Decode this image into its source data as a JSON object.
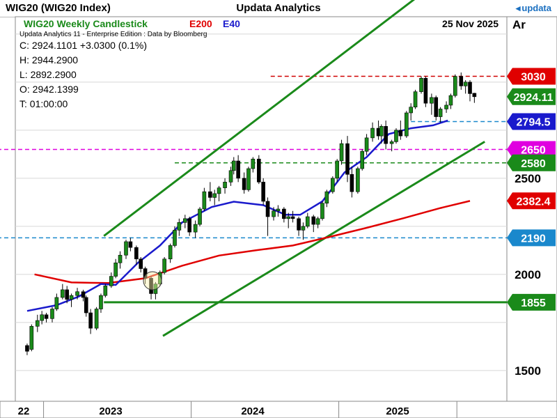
{
  "window": {
    "title_left": "WIG20 (WIG20 Index)",
    "title_center": "Updata Analytics",
    "logo": "updata"
  },
  "header": {
    "chart_title": "WIG20 Weekly Candlestick",
    "legend_e200": "E200",
    "legend_e40": "E40",
    "date": "25 Nov 2025",
    "axis_label": "Ar",
    "subheader": "Updata Analytics 11 - Enterprise Edition : Data by Bloomberg"
  },
  "ohlc": {
    "close": "C: 2924.1101  +3.0300 (0.1%)",
    "high": "H: 2944.2900",
    "low": "L: 2892.2900",
    "open": "O: 2942.1399",
    "time": "T: 01:00:00"
  },
  "colors": {
    "candle_up": "#1a8a1a",
    "candle_down": "#000000",
    "ema200": "#e00000",
    "ema40": "#1a1acc",
    "channel": "#1a8a1a",
    "level_blue": "#1a88cc",
    "level_magenta": "#e000e0",
    "level_red": "#d00000"
  },
  "chart_data": {
    "type": "line",
    "x_axis": {
      "labels": [
        "22",
        "2023",
        "2024",
        "2025"
      ]
    },
    "y_axis": {
      "ticks": [
        1500,
        2000,
        2500
      ],
      "range": [
        1340,
        3340
      ]
    },
    "price_labels": [
      {
        "text": "3030",
        "value": 3030,
        "color": "#e00000"
      },
      {
        "text": "2924.11",
        "value": 2924.11,
        "color": "#1a8a1a"
      },
      {
        "text": "2794.5",
        "value": 2794.5,
        "color": "#1a1acc"
      },
      {
        "text": "2650",
        "value": 2650,
        "color": "#e000e0"
      },
      {
        "text": "2580",
        "value": 2580,
        "color": "#1a8a1a"
      },
      {
        "text": "2382.4",
        "value": 2382.4,
        "color": "#e00000"
      },
      {
        "text": "2190",
        "value": 2190,
        "color": "#1a88cc"
      },
      {
        "text": "1855",
        "value": 1855,
        "color": "#1a8a1a"
      }
    ],
    "series": [
      {
        "name": "E200",
        "color": "#e00000",
        "points": [
          [
            2022.75,
            2000
          ],
          [
            2023.0,
            1958
          ],
          [
            2023.25,
            1955
          ],
          [
            2023.5,
            1980
          ],
          [
            2023.75,
            2045
          ],
          [
            2024.0,
            2098
          ],
          [
            2024.25,
            2125
          ],
          [
            2024.5,
            2150
          ],
          [
            2024.75,
            2195
          ],
          [
            2025.0,
            2242
          ],
          [
            2025.25,
            2292
          ],
          [
            2025.5,
            2345
          ],
          [
            2025.7,
            2382
          ]
        ]
      },
      {
        "name": "E40",
        "color": "#1a1acc",
        "points": [
          [
            2022.7,
            1810
          ],
          [
            2022.9,
            1840
          ],
          [
            2023.05,
            1885
          ],
          [
            2023.2,
            1950
          ],
          [
            2023.3,
            1945
          ],
          [
            2023.45,
            2060
          ],
          [
            2023.6,
            2150
          ],
          [
            2023.75,
            2270
          ],
          [
            2023.95,
            2350
          ],
          [
            2024.1,
            2378
          ],
          [
            2024.3,
            2360
          ],
          [
            2024.45,
            2310
          ],
          [
            2024.55,
            2310
          ],
          [
            2024.7,
            2380
          ],
          [
            2024.85,
            2530
          ],
          [
            2025.0,
            2610
          ],
          [
            2025.15,
            2730
          ],
          [
            2025.3,
            2760
          ],
          [
            2025.45,
            2775
          ],
          [
            2025.55,
            2800
          ]
        ]
      }
    ],
    "levels": [
      {
        "value": 3030,
        "style": "dashed",
        "color": "#d00000",
        "from": 2024.35
      },
      {
        "value": 2794.5,
        "style": "dashed",
        "color": "#1a88cc",
        "from": 2025.3
      },
      {
        "value": 2650,
        "style": "dashed",
        "color": "#e000e0",
        "from": 2022.45
      },
      {
        "value": 2580,
        "style": "dashed",
        "color": "#1a8a1a",
        "from": 2023.7
      },
      {
        "value": 2190,
        "style": "dashed",
        "color": "#1a88cc",
        "from": 2022.45
      },
      {
        "value": 1855,
        "style": "solid",
        "color": "#1a8a1a",
        "from": 2023.22
      }
    ],
    "channel": {
      "color": "#1a8a1a",
      "upper": [
        [
          2023.22,
          2200
        ],
        [
          2025.8,
          3710
        ]
      ],
      "lower": [
        [
          2023.62,
          1680
        ],
        [
          2025.8,
          2690
        ]
      ]
    },
    "candles": [
      [
        2022.7,
        1630,
        1640,
        1580,
        1600
      ],
      [
        2022.73,
        1610,
        1740,
        1600,
        1730
      ],
      [
        2022.77,
        1730,
        1790,
        1700,
        1760
      ],
      [
        2022.8,
        1760,
        1810,
        1740,
        1790
      ],
      [
        2022.83,
        1790,
        1800,
        1750,
        1770
      ],
      [
        2022.87,
        1770,
        1830,
        1750,
        1820
      ],
      [
        2022.9,
        1820,
        1900,
        1810,
        1880
      ],
      [
        2022.94,
        1880,
        1950,
        1870,
        1920
      ],
      [
        2022.97,
        1920,
        1940,
        1850,
        1870
      ],
      [
        2023.0,
        1870,
        1900,
        1830,
        1890
      ],
      [
        2023.04,
        1890,
        1930,
        1870,
        1910
      ],
      [
        2023.08,
        1910,
        1920,
        1860,
        1880
      ],
      [
        2023.1,
        1880,
        1890,
        1780,
        1800
      ],
      [
        2023.13,
        1800,
        1820,
        1690,
        1720
      ],
      [
        2023.17,
        1720,
        1830,
        1710,
        1820
      ],
      [
        2023.2,
        1820,
        1900,
        1800,
        1890
      ],
      [
        2023.23,
        1890,
        1950,
        1880,
        1940
      ],
      [
        2023.27,
        1940,
        2010,
        1930,
        1990
      ],
      [
        2023.3,
        1990,
        2080,
        1980,
        2060
      ],
      [
        2023.33,
        2060,
        2120,
        2030,
        2100
      ],
      [
        2023.37,
        2100,
        2180,
        2080,
        2170
      ],
      [
        2023.4,
        2170,
        2190,
        2120,
        2140
      ],
      [
        2023.44,
        2140,
        2150,
        2050,
        2080
      ],
      [
        2023.47,
        2080,
        2090,
        2010,
        2030
      ],
      [
        2023.5,
        2030,
        2040,
        1950,
        1980
      ],
      [
        2023.54,
        1980,
        1990,
        1870,
        1900
      ],
      [
        2023.57,
        1900,
        1960,
        1870,
        1950
      ],
      [
        2023.6,
        1950,
        2020,
        1940,
        2010
      ],
      [
        2023.63,
        2010,
        2090,
        2000,
        2080
      ],
      [
        2023.67,
        2080,
        2160,
        2060,
        2150
      ],
      [
        2023.7,
        2150,
        2250,
        2140,
        2230
      ],
      [
        2023.73,
        2230,
        2290,
        2200,
        2270
      ],
      [
        2023.77,
        2270,
        2310,
        2240,
        2290
      ],
      [
        2023.8,
        2290,
        2300,
        2200,
        2220
      ],
      [
        2023.84,
        2220,
        2280,
        2190,
        2260
      ],
      [
        2023.87,
        2260,
        2350,
        2250,
        2340
      ],
      [
        2023.9,
        2340,
        2450,
        2330,
        2430
      ],
      [
        2023.94,
        2430,
        2480,
        2380,
        2400
      ],
      [
        2023.97,
        2400,
        2440,
        2360,
        2420
      ],
      [
        2024.0,
        2420,
        2460,
        2380,
        2450
      ],
      [
        2024.04,
        2450,
        2500,
        2420,
        2480
      ],
      [
        2024.08,
        2480,
        2560,
        2460,
        2540
      ],
      [
        2024.1,
        2540,
        2610,
        2520,
        2590
      ],
      [
        2024.13,
        2590,
        2620,
        2480,
        2500
      ],
      [
        2024.17,
        2500,
        2530,
        2420,
        2440
      ],
      [
        2024.2,
        2440,
        2560,
        2430,
        2550
      ],
      [
        2024.23,
        2550,
        2610,
        2530,
        2600
      ],
      [
        2024.27,
        2600,
        2620,
        2470,
        2480
      ],
      [
        2024.3,
        2480,
        2500,
        2360,
        2380
      ],
      [
        2024.33,
        2380,
        2400,
        2200,
        2300
      ],
      [
        2024.37,
        2300,
        2350,
        2280,
        2330
      ],
      [
        2024.4,
        2330,
        2360,
        2300,
        2340
      ],
      [
        2024.44,
        2340,
        2350,
        2270,
        2290
      ],
      [
        2024.47,
        2290,
        2320,
        2240,
        2300
      ],
      [
        2024.5,
        2300,
        2330,
        2270,
        2290
      ],
      [
        2024.54,
        2290,
        2300,
        2200,
        2230
      ],
      [
        2024.57,
        2230,
        2270,
        2180,
        2250
      ],
      [
        2024.6,
        2250,
        2320,
        2240,
        2300
      ],
      [
        2024.64,
        2300,
        2310,
        2220,
        2260
      ],
      [
        2024.67,
        2260,
        2300,
        2240,
        2290
      ],
      [
        2024.7,
        2290,
        2380,
        2280,
        2370
      ],
      [
        2024.73,
        2370,
        2440,
        2350,
        2430
      ],
      [
        2024.77,
        2430,
        2510,
        2420,
        2500
      ],
      [
        2024.8,
        2500,
        2600,
        2480,
        2590
      ],
      [
        2024.83,
        2590,
        2700,
        2570,
        2680
      ],
      [
        2024.87,
        2680,
        2720,
        2480,
        2520
      ],
      [
        2024.9,
        2520,
        2560,
        2400,
        2430
      ],
      [
        2024.94,
        2430,
        2560,
        2420,
        2550
      ],
      [
        2024.97,
        2550,
        2650,
        2540,
        2640
      ],
      [
        2025.0,
        2640,
        2730,
        2620,
        2710
      ],
      [
        2025.04,
        2710,
        2790,
        2690,
        2760
      ],
      [
        2025.08,
        2760,
        2800,
        2700,
        2720
      ],
      [
        2025.1,
        2720,
        2780,
        2680,
        2770
      ],
      [
        2025.13,
        2770,
        2800,
        2650,
        2680
      ],
      [
        2025.17,
        2680,
        2700,
        2640,
        2690
      ],
      [
        2025.2,
        2690,
        2760,
        2680,
        2750
      ],
      [
        2025.23,
        2750,
        2800,
        2700,
        2720
      ],
      [
        2025.27,
        2720,
        2850,
        2710,
        2840
      ],
      [
        2025.3,
        2840,
        2890,
        2800,
        2870
      ],
      [
        2025.33,
        2870,
        2960,
        2860,
        2950
      ],
      [
        2025.37,
        2950,
        3030,
        2940,
        3020
      ],
      [
        2025.4,
        3020,
        3030,
        2870,
        2890
      ],
      [
        2025.44,
        2890,
        2940,
        2830,
        2920
      ],
      [
        2025.47,
        2920,
        2930,
        2800,
        2820
      ],
      [
        2025.5,
        2820,
        2870,
        2790,
        2860
      ],
      [
        2025.54,
        2860,
        2900,
        2840,
        2880
      ],
      [
        2025.57,
        2880,
        2940,
        2860,
        2930
      ],
      [
        2025.6,
        2930,
        3040,
        2920,
        3030
      ],
      [
        2025.64,
        3030,
        3050,
        2960,
        2980
      ],
      [
        2025.67,
        2980,
        3010,
        2940,
        3000
      ],
      [
        2025.7,
        3000,
        3010,
        2900,
        2940
      ],
      [
        2025.73,
        2942,
        2944,
        2892,
        2924
      ]
    ]
  }
}
